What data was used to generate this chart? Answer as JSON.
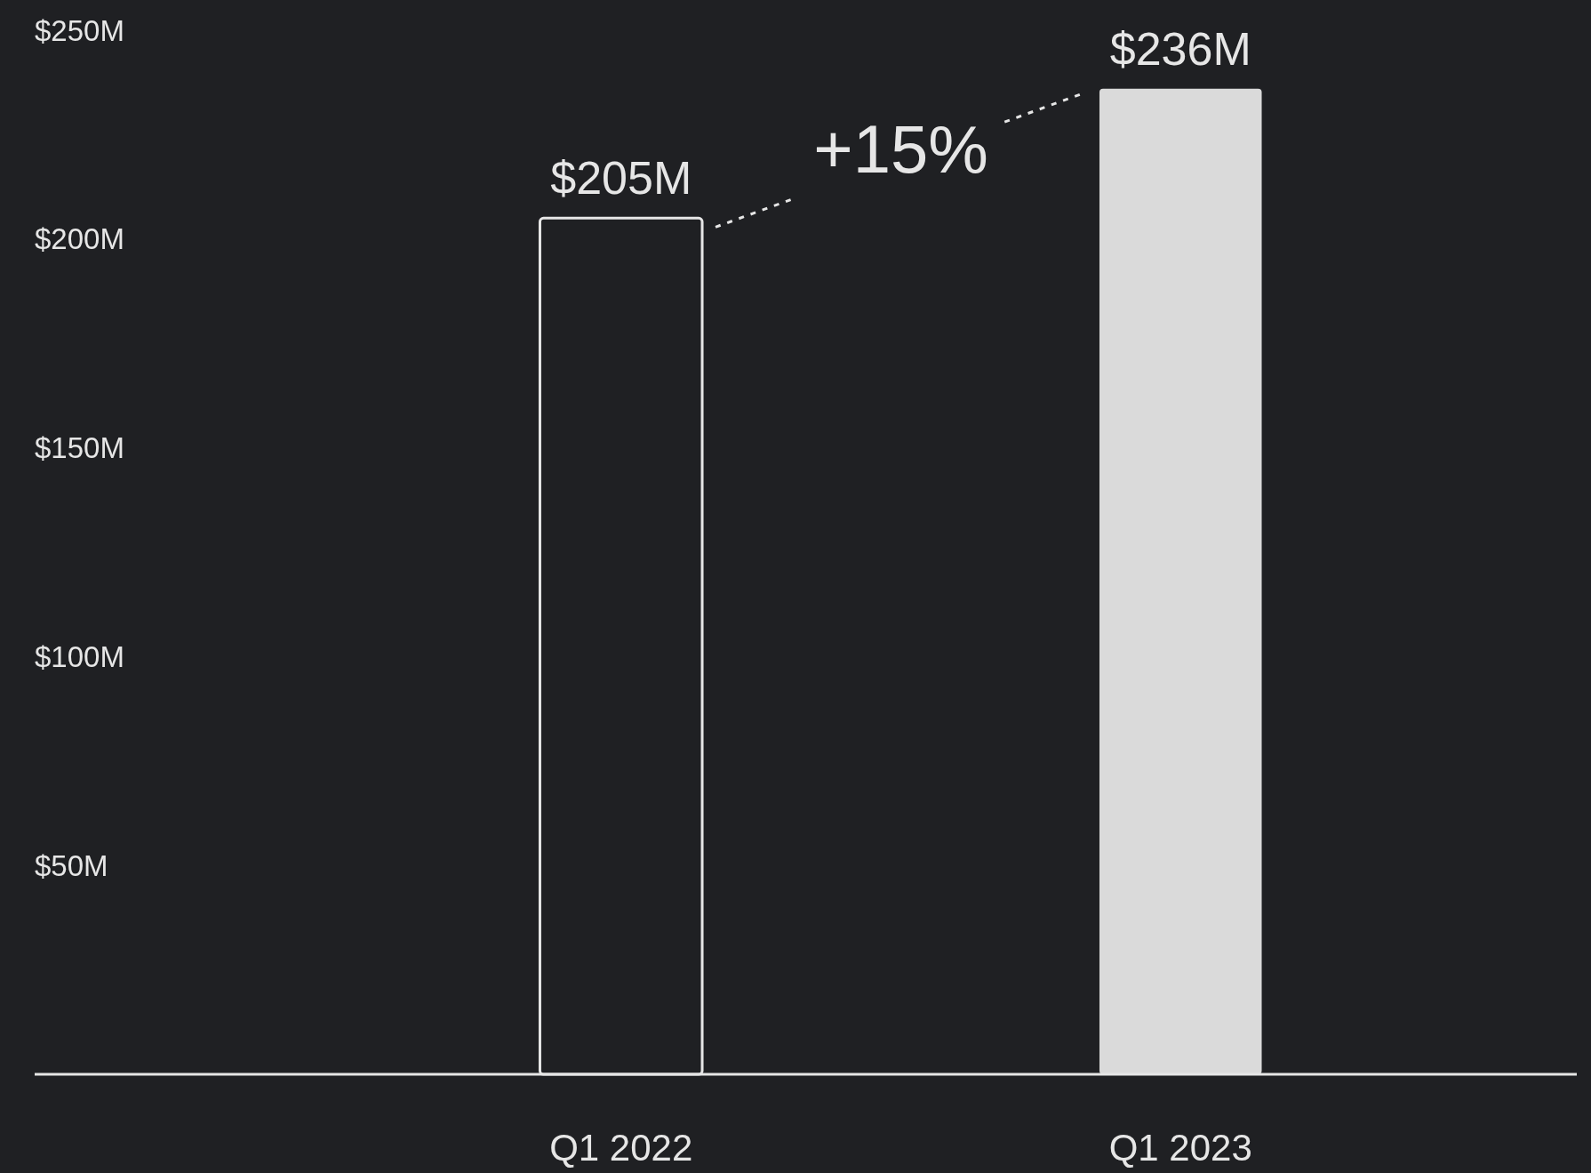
{
  "chart_data": {
    "type": "bar",
    "categories": [
      "Q1 2022",
      "Q1 2023"
    ],
    "values": [
      205,
      236
    ],
    "colors": [
      "#1f2023",
      "#dadada"
    ],
    "value_labels": [
      "$205M",
      "$236M"
    ],
    "ylim": [
      0,
      250
    ],
    "yticks": [
      {
        "value": 50,
        "label": "$50M"
      },
      {
        "value": 100,
        "label": "$100M"
      },
      {
        "value": 150,
        "label": "$150M"
      },
      {
        "value": 200,
        "label": "$200M"
      },
      {
        "value": 250,
        "label": "$250M"
      }
    ],
    "annotations": [
      "+15%"
    ],
    "grid": false
  }
}
